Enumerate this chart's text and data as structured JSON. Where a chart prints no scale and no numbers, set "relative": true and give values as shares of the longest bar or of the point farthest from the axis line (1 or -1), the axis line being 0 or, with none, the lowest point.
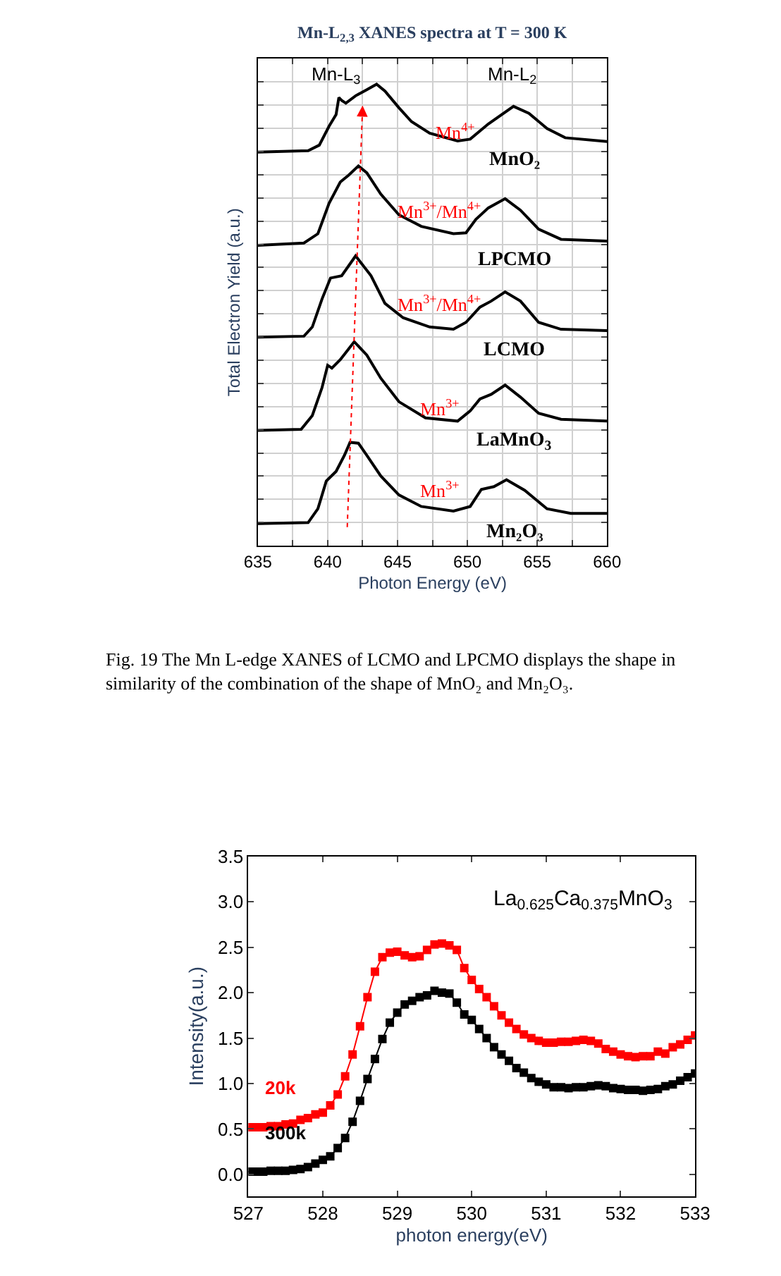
{
  "chart_data": [
    {
      "type": "line",
      "title": "Mn-L$_{2,3}$ XANES spectra at T = 300 K",
      "xlabel": "Photon Energy (eV)",
      "ylabel": "Total Electron Yield (a.u.)",
      "relative": true,
      "xlim": [
        635,
        660
      ],
      "xticks": [
        635,
        {
          "value": 637.5,
          "label": null
        },
        640,
        {
          "value": 642.5,
          "label": null
        },
        645,
        {
          "value": 647.5,
          "label": null
        },
        650,
        {
          "value": 652.5,
          "label": null
        },
        655,
        {
          "value": 657.5,
          "label": null
        },
        660
      ],
      "grid": true,
      "tick_labels": "x",
      "marker": "none",
      "line_style": "solid",
      "series": [
        {
          "name": "MnO₂",
          "color": "#000000",
          "x": [
            635,
            638.6,
            639.4,
            640.1,
            640.6,
            640.8,
            641.0,
            641.3,
            642.0,
            642.8,
            643.5,
            644.1,
            645.1,
            646.0,
            647.3,
            649.3,
            650.2,
            651.5,
            653.3,
            654.4,
            655.7,
            657.0,
            660
          ],
          "values": [
            0.853,
            0.856,
            0.868,
            0.909,
            0.934,
            0.971,
            0.965,
            0.959,
            0.975,
            0.988,
            1.0,
            0.985,
            0.949,
            0.919,
            0.894,
            0.877,
            0.881,
            0.914,
            0.952,
            0.937,
            0.904,
            0.884,
            0.876
          ]
        },
        {
          "name": "LPCMO",
          "color": "#000000",
          "x": [
            635,
            638.3,
            639.3,
            640.1,
            640.9,
            641.5,
            642.2,
            642.8,
            643.8,
            645.1,
            646.7,
            649.0,
            649.9,
            650.6,
            651.5,
            652.7,
            653.8,
            655.1,
            656.7,
            660
          ],
          "values": [
            0.651,
            0.656,
            0.676,
            0.742,
            0.788,
            0.803,
            0.823,
            0.808,
            0.762,
            0.717,
            0.692,
            0.676,
            0.678,
            0.707,
            0.732,
            0.752,
            0.727,
            0.686,
            0.664,
            0.66
          ]
        },
        {
          "name": "LCMO",
          "color": "#000000",
          "x": [
            635,
            638.3,
            638.9,
            639.6,
            640.2,
            641.0,
            642.0,
            643.1,
            644.1,
            645.4,
            647.3,
            649.0,
            649.9,
            650.9,
            651.7,
            652.7,
            653.8,
            655.1,
            656.7,
            660
          ],
          "values": [
            0.452,
            0.454,
            0.474,
            0.535,
            0.58,
            0.585,
            0.628,
            0.585,
            0.525,
            0.494,
            0.474,
            0.469,
            0.484,
            0.517,
            0.53,
            0.55,
            0.53,
            0.484,
            0.469,
            0.466
          ]
        },
        {
          "name": "LaMnO$_{3}$",
          "color": "#000000",
          "x": [
            635,
            638.1,
            638.9,
            639.6,
            640.0,
            640.3,
            640.9,
            641.9,
            642.8,
            643.8,
            645.1,
            647.0,
            649.3,
            650.2,
            650.9,
            651.7,
            652.7,
            653.8,
            655.1,
            656.7,
            660
          ],
          "values": [
            0.25,
            0.252,
            0.282,
            0.343,
            0.391,
            0.385,
            0.403,
            0.442,
            0.413,
            0.363,
            0.312,
            0.277,
            0.27,
            0.292,
            0.318,
            0.328,
            0.348,
            0.322,
            0.287,
            0.274,
            0.27
          ]
        },
        {
          "name": "Mn₂O₃",
          "color": "#000000",
          "x": [
            635,
            638.6,
            639.3,
            639.9,
            640.6,
            641.2,
            641.6,
            642.2,
            642.8,
            643.8,
            645.1,
            646.7,
            649.0,
            650.2,
            651.0,
            651.9,
            652.8,
            654.1,
            655.7,
            657.4,
            660
          ],
          "values": [
            0.048,
            0.05,
            0.08,
            0.14,
            0.161,
            0.196,
            0.224,
            0.222,
            0.196,
            0.151,
            0.11,
            0.085,
            0.075,
            0.085,
            0.122,
            0.128,
            0.143,
            0.12,
            0.08,
            0.07,
            0.07
          ]
        }
      ],
      "annotations": [
        "Mn-L$_{3}$",
        "Mn-L$_{2}$",
        "Mn$^{4+}$",
        "Mn$^{3+}$/Mn$^{4+}$",
        "Mn$^{3+}$/Mn$^{4+}$",
        "Mn$^{3+}$",
        "Mn$^{3+}$",
        "Fig. 19 The Mn L-edge XANES of LCMO and LPCMO displays the shape in similarity of the combination of the shape of MnO₂ and Mn₂O₃."
      ]
    },
    {
      "type": "line",
      "xlabel": "photon energy(eV)",
      "ylabel": "Intensity(a.u.)",
      "xlim": [
        527,
        533
      ],
      "xticks": [
        527,
        528,
        529,
        530,
        531,
        532,
        533
      ],
      "ylim": [
        -0.24,
        3.5
      ],
      "yticks": [
        {
          "value": 0,
          "label": "0.0"
        },
        {
          "value": 0.5,
          "label": "0.5"
        },
        {
          "value": 1,
          "label": "1.0"
        },
        {
          "value": 1.5,
          "label": "1.5"
        },
        {
          "value": 2,
          "label": "2.0"
        },
        {
          "value": 2.5,
          "label": "2.5"
        },
        {
          "value": 3,
          "label": "3.0"
        },
        {
          "value": 3.5,
          "label": "3.5"
        }
      ],
      "marker": "square",
      "line_style": "solid",
      "series": [
        {
          "name": "20k",
          "color": "#ff0000",
          "x": [
            527.0,
            527.1,
            527.2,
            527.3,
            527.4,
            527.5,
            527.6,
            527.7,
            527.8,
            527.9,
            528.0,
            528.1,
            528.2,
            528.3,
            528.4,
            528.5,
            528.6,
            528.7,
            528.8,
            528.9,
            529.0,
            529.1,
            529.2,
            529.3,
            529.4,
            529.5,
            529.6,
            529.7,
            529.8,
            529.9,
            530.0,
            530.1,
            530.2,
            530.3,
            530.4,
            530.5,
            530.6,
            530.7,
            530.8,
            530.9,
            531.0,
            531.1,
            531.2,
            531.3,
            531.4,
            531.5,
            531.6,
            531.7,
            531.8,
            531.9,
            532.0,
            532.1,
            532.2,
            532.3,
            532.4,
            532.5,
            532.6,
            532.7,
            532.8,
            532.9,
            533.0
          ],
          "values": [
            0.52,
            0.52,
            0.52,
            0.53,
            0.53,
            0.55,
            0.56,
            0.6,
            0.62,
            0.66,
            0.68,
            0.76,
            0.88,
            1.08,
            1.32,
            1.63,
            1.95,
            2.23,
            2.39,
            2.44,
            2.45,
            2.41,
            2.39,
            2.4,
            2.47,
            2.53,
            2.54,
            2.52,
            2.47,
            2.27,
            2.14,
            2.04,
            1.95,
            1.85,
            1.75,
            1.67,
            1.6,
            1.54,
            1.5,
            1.47,
            1.45,
            1.45,
            1.46,
            1.46,
            1.47,
            1.48,
            1.47,
            1.44,
            1.38,
            1.35,
            1.32,
            1.3,
            1.29,
            1.3,
            1.3,
            1.35,
            1.33,
            1.4,
            1.43,
            1.48,
            1.53
          ]
        },
        {
          "name": "300k",
          "color": "#000000",
          "x": [
            527.0,
            527.1,
            527.2,
            527.3,
            527.4,
            527.5,
            527.6,
            527.7,
            527.8,
            527.9,
            528.0,
            528.1,
            528.2,
            528.3,
            528.4,
            528.5,
            528.6,
            528.7,
            528.8,
            528.9,
            529.0,
            529.1,
            529.2,
            529.3,
            529.4,
            529.5,
            529.6,
            529.7,
            529.8,
            529.9,
            530.0,
            530.1,
            530.2,
            530.3,
            530.4,
            530.5,
            530.6,
            530.7,
            530.8,
            530.9,
            531.0,
            531.1,
            531.2,
            531.3,
            531.4,
            531.5,
            531.6,
            531.7,
            531.8,
            531.9,
            532.0,
            532.1,
            532.2,
            532.3,
            532.4,
            532.5,
            532.6,
            532.7,
            532.8,
            532.9,
            533.0
          ],
          "values": [
            0.03,
            0.03,
            0.03,
            0.04,
            0.04,
            0.04,
            0.05,
            0.06,
            0.08,
            0.12,
            0.16,
            0.2,
            0.29,
            0.4,
            0.58,
            0.81,
            1.05,
            1.27,
            1.49,
            1.67,
            1.78,
            1.87,
            1.91,
            1.95,
            1.97,
            2.02,
            2.0,
            1.99,
            1.89,
            1.76,
            1.7,
            1.6,
            1.5,
            1.4,
            1.32,
            1.25,
            1.17,
            1.12,
            1.06,
            1.02,
            0.99,
            0.96,
            0.96,
            0.95,
            0.96,
            0.96,
            0.97,
            0.98,
            0.97,
            0.95,
            0.94,
            0.93,
            0.93,
            0.92,
            0.93,
            0.94,
            0.97,
            0.99,
            1.03,
            1.07,
            1.11
          ]
        }
      ],
      "annotations": [
        "La$_{0.625}$Ca$_{0.375}$MnO$_{3}$"
      ]
    }
  ]
}
